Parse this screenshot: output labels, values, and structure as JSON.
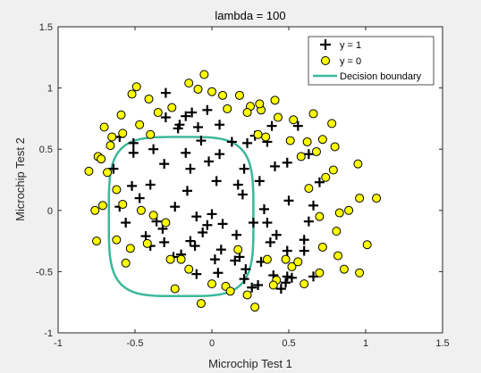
{
  "chart_data": {
    "type": "scatter",
    "title": "lambda = 100",
    "xlabel": "Microchip Test 1",
    "ylabel": "Microchip Test 2",
    "xlim": [
      -1,
      1.5
    ],
    "ylim": [
      -1,
      1.5
    ],
    "xticks": [
      "-1",
      "-0.5",
      "0",
      "0.5",
      "1",
      "1.5"
    ],
    "yticks": [
      "-1",
      "-0.5",
      "0",
      "0.5",
      "1",
      "1.5"
    ],
    "grid": false,
    "legend_placement": "top-right",
    "colors": {
      "positive": "#000000",
      "negative_fill": "#ffff00",
      "negative_edge": "#000000",
      "boundary": "#3cb89a"
    },
    "series": [
      {
        "name": "y = 1",
        "marker": "plus",
        "points": [
          [
            0.05,
            0.7
          ],
          [
            -0.09,
            0.68
          ],
          [
            -0.21,
            0.7
          ],
          [
            -0.38,
            0.5
          ],
          [
            -0.51,
            0.47
          ],
          [
            -0.52,
            0.2
          ],
          [
            -0.4,
            0.21
          ],
          [
            -0.31,
            0.38
          ],
          [
            -0.17,
            0.47
          ],
          [
            -0.14,
            0.34
          ],
          [
            -0.22,
            0.67
          ],
          [
            -0.3,
            0.76
          ],
          [
            -0.17,
            0.77
          ],
          [
            -0.13,
            0.8
          ],
          [
            -0.03,
            0.82
          ],
          [
            -0.3,
            0.96
          ],
          [
            -0.51,
            0.55
          ],
          [
            -0.6,
            0.6
          ],
          [
            -0.64,
            0.34
          ],
          [
            -0.36,
            -0.09
          ],
          [
            -0.24,
            0.03
          ],
          [
            -0.16,
            0.16
          ],
          [
            -0.43,
            -0.21
          ],
          [
            -0.4,
            -0.29
          ],
          [
            -0.32,
            -0.15
          ],
          [
            -0.31,
            -0.26
          ],
          [
            0.06,
            -0.32
          ],
          [
            0.04,
            -0.51
          ],
          [
            0.21,
            -0.56
          ],
          [
            0.3,
            -0.61
          ],
          [
            0.4,
            -0.53
          ],
          [
            0.49,
            -0.54
          ],
          [
            0.38,
            -0.26
          ],
          [
            0.36,
            -0.1
          ],
          [
            0.27,
            -0.1
          ],
          [
            0.17,
            0.21
          ],
          [
            0.21,
            0.34
          ],
          [
            0.23,
            0.55
          ],
          [
            0.13,
            0.56
          ],
          [
            0.39,
            0.69
          ],
          [
            0.56,
            0.69
          ],
          [
            0.63,
            0.46
          ],
          [
            0.7,
            0.23
          ],
          [
            0.66,
            0.04
          ],
          [
            0.63,
            -0.09
          ],
          [
            0.6,
            -0.24
          ],
          [
            0.6,
            -0.33
          ],
          [
            0.66,
            -0.54
          ],
          [
            0.48,
            -0.59
          ],
          [
            0.26,
            -0.63
          ],
          [
            0.15,
            -0.41
          ],
          [
            0.02,
            -0.4
          ],
          [
            -0.1,
            -0.52
          ],
          [
            -0.2,
            -0.36
          ],
          [
            -0.11,
            -0.29
          ],
          [
            -0.1,
            -0.05
          ],
          [
            -0.02,
            0.4
          ],
          [
            0.05,
            0.46
          ],
          [
            0.2,
            0.13
          ],
          [
            0.36,
            0.56
          ],
          [
            0.41,
            0.36
          ],
          [
            0.49,
            0.39
          ],
          [
            0.5,
            0.08
          ],
          [
            0.42,
            -0.2
          ],
          [
            0.49,
            -0.33
          ],
          [
            0.52,
            -0.55
          ],
          [
            0.45,
            -0.64
          ],
          [
            0.32,
            -0.42
          ],
          [
            0.22,
            -0.48
          ],
          [
            0.16,
            -0.2
          ],
          [
            0.07,
            -0.11
          ],
          [
            0.0,
            -0.03
          ],
          [
            -0.03,
            -0.12
          ],
          [
            -0.06,
            -0.18
          ],
          [
            -0.14,
            -0.25
          ],
          [
            -0.47,
            0.1
          ],
          [
            -0.56,
            -0.1
          ],
          [
            -0.6,
            0.03
          ],
          [
            -0.07,
            0.57
          ],
          [
            0.03,
            0.24
          ],
          [
            0.28,
            0.61
          ],
          [
            0.31,
            0.24
          ],
          [
            0.34,
            0.01
          ],
          [
            0.18,
            -0.38
          ],
          [
            -0.25,
            -0.38
          ]
        ]
      },
      {
        "name": "y = 0",
        "marker": "circle",
        "points": [
          [
            -0.15,
            1.04
          ],
          [
            -0.05,
            1.11
          ],
          [
            0.07,
            0.94
          ],
          [
            0.18,
            0.94
          ],
          [
            0.32,
            0.82
          ],
          [
            0.43,
            0.76
          ],
          [
            0.53,
            0.74
          ],
          [
            0.62,
            0.56
          ],
          [
            0.72,
            0.58
          ],
          [
            0.78,
            0.71
          ],
          [
            0.8,
            0.52
          ],
          [
            0.79,
            0.33
          ],
          [
            0.95,
            0.38
          ],
          [
            0.96,
            0.1
          ],
          [
            0.89,
            0.0
          ],
          [
            0.83,
            -0.02
          ],
          [
            0.81,
            -0.17
          ],
          [
            0.82,
            -0.37
          ],
          [
            0.86,
            -0.48
          ],
          [
            0.96,
            -0.51
          ],
          [
            1.01,
            -0.28
          ],
          [
            1.07,
            0.1
          ],
          [
            0.66,
            0.79
          ],
          [
            0.58,
            0.44
          ],
          [
            0.52,
            -0.46
          ],
          [
            0.6,
            -0.6
          ],
          [
            0.48,
            -0.4
          ],
          [
            0.28,
            -0.79
          ],
          [
            0.09,
            -0.62
          ],
          [
            -0.07,
            -0.76
          ],
          [
            -0.24,
            -0.64
          ],
          [
            -0.27,
            -0.4
          ],
          [
            -0.42,
            -0.27
          ],
          [
            -0.53,
            -0.31
          ],
          [
            -0.56,
            -0.43
          ],
          [
            -0.62,
            -0.24
          ],
          [
            -0.75,
            -0.25
          ],
          [
            -0.76,
            0.0
          ],
          [
            -0.8,
            0.32
          ],
          [
            -0.74,
            0.44
          ],
          [
            -0.66,
            0.53
          ],
          [
            -0.68,
            0.31
          ],
          [
            -0.62,
            0.17
          ],
          [
            -0.7,
            0.68
          ],
          [
            -0.47,
            0.7
          ],
          [
            -0.4,
            0.62
          ],
          [
            -0.35,
            0.8
          ],
          [
            -0.41,
            0.91
          ],
          [
            -0.49,
            1.01
          ],
          [
            -0.52,
            0.95
          ],
          [
            -0.59,
            0.78
          ],
          [
            -0.71,
            0.04
          ],
          [
            -0.58,
            0.05
          ],
          [
            -0.46,
            0.0
          ],
          [
            -0.38,
            -0.04
          ],
          [
            -0.3,
            -0.1
          ],
          [
            -0.2,
            -0.4
          ],
          [
            -0.15,
            -0.48
          ],
          [
            0.0,
            -0.6
          ],
          [
            0.12,
            -0.66
          ],
          [
            0.17,
            -0.32
          ],
          [
            0.23,
            -0.69
          ],
          [
            0.36,
            -0.4
          ],
          [
            0.42,
            -0.57
          ],
          [
            0.56,
            -0.42
          ],
          [
            0.35,
            0.6
          ],
          [
            0.31,
            0.87
          ],
          [
            0.41,
            0.9
          ],
          [
            0.51,
            0.57
          ],
          [
            0.68,
            0.48
          ],
          [
            0.74,
            0.27
          ],
          [
            0.63,
            0.18
          ],
          [
            0.7,
            -0.05
          ],
          [
            0.72,
            -0.3
          ],
          [
            0.7,
            -0.51
          ],
          [
            0.4,
            -0.61
          ],
          [
            0.3,
            0.62
          ],
          [
            0.25,
            0.85
          ],
          [
            0.23,
            0.8
          ],
          [
            0.1,
            0.83
          ],
          [
            0.0,
            0.97
          ],
          [
            -0.09,
            0.99
          ],
          [
            -0.26,
            0.84
          ],
          [
            -0.58,
            0.63
          ],
          [
            -0.72,
            0.42
          ],
          [
            -0.65,
            0.6
          ]
        ]
      }
    ],
    "legend": [
      "y = 1",
      "y = 0",
      "Decision boundary"
    ],
    "boundary": {
      "name": "Decision boundary",
      "center": [
        -0.2,
        -0.05
      ],
      "rx": 0.47,
      "ry": 0.65,
      "shape": "superellipse-4"
    }
  }
}
